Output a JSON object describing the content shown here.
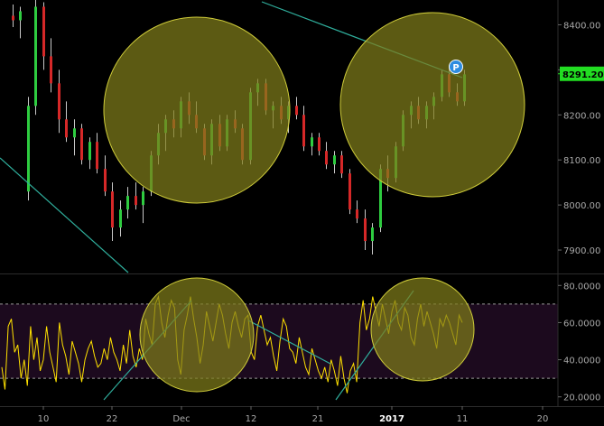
{
  "colors": {
    "background": "#000000",
    "panel_border": "#2c2c2c",
    "candle_up": "#2ecc40",
    "candle_down": "#d62828",
    "rsi_line": "#ffe100",
    "rsi_band_fill": "#1c0a1e",
    "trendline": "#2fae9c",
    "highlight_fill": "#7f7d1a",
    "highlight_stroke": "#cfcc3a",
    "price_tag_bg": "#22dd22",
    "p_marker_bg": "#2e8ce0",
    "axis_text": "#a8a8a8"
  },
  "price_panel": {
    "y_axis_labels": [
      "8400.00",
      "8300.00",
      "8200.00",
      "8100.00",
      "8000.00",
      "7900.00"
    ],
    "y_axis_values": [
      8400,
      8300,
      8200,
      8100,
      8000,
      7900
    ],
    "y_range": [
      7850,
      8455
    ],
    "current_price": "8291.20",
    "marker_label": "P"
  },
  "rsi_panel": {
    "y_axis_labels": [
      "80.0000",
      "60.0000",
      "40.0000",
      "20.0000"
    ],
    "y_axis_values": [
      80,
      60,
      40,
      20
    ],
    "y_range": [
      15,
      85
    ],
    "band": [
      30,
      70
    ]
  },
  "x_axis": {
    "labels": [
      {
        "text": "10",
        "bold": false
      },
      {
        "text": "22",
        "bold": false
      },
      {
        "text": "Dec",
        "bold": false
      },
      {
        "text": "12",
        "bold": false
      },
      {
        "text": "21",
        "bold": false
      },
      {
        "text": "2017",
        "bold": true
      },
      {
        "text": "11",
        "bold": false
      },
      {
        "text": "20",
        "bold": false
      }
    ]
  },
  "chart_data": {
    "type": "candlestick",
    "price_y_range": [
      7850,
      8455
    ],
    "candles": [
      {
        "o": 8420,
        "h": 8445,
        "l": 8395,
        "c": 8410
      },
      {
        "o": 8410,
        "h": 8440,
        "l": 8370,
        "c": 8430
      },
      {
        "o": 8030,
        "h": 8240,
        "l": 8010,
        "c": 8220
      },
      {
        "o": 8220,
        "h": 8455,
        "l": 8200,
        "c": 8440
      },
      {
        "o": 8440,
        "h": 8450,
        "l": 8300,
        "c": 8330
      },
      {
        "o": 8330,
        "h": 8370,
        "l": 8250,
        "c": 8270
      },
      {
        "o": 8270,
        "h": 8300,
        "l": 8160,
        "c": 8190
      },
      {
        "o": 8190,
        "h": 8230,
        "l": 8140,
        "c": 8150
      },
      {
        "o": 8150,
        "h": 8190,
        "l": 8110,
        "c": 8170
      },
      {
        "o": 8170,
        "h": 8180,
        "l": 8090,
        "c": 8100
      },
      {
        "o": 8100,
        "h": 8150,
        "l": 8080,
        "c": 8140
      },
      {
        "o": 8140,
        "h": 8160,
        "l": 8070,
        "c": 8080
      },
      {
        "o": 8080,
        "h": 8110,
        "l": 8020,
        "c": 8030
      },
      {
        "o": 8030,
        "h": 8050,
        "l": 7920,
        "c": 7950
      },
      {
        "o": 7950,
        "h": 8010,
        "l": 7930,
        "c": 7990
      },
      {
        "o": 7990,
        "h": 8040,
        "l": 7970,
        "c": 8020
      },
      {
        "o": 8020,
        "h": 8050,
        "l": 7990,
        "c": 8000
      },
      {
        "o": 8000,
        "h": 8040,
        "l": 7960,
        "c": 8030
      },
      {
        "o": 8030,
        "h": 8120,
        "l": 8020,
        "c": 8110
      },
      {
        "o": 8110,
        "h": 8180,
        "l": 8090,
        "c": 8160
      },
      {
        "o": 8160,
        "h": 8200,
        "l": 8120,
        "c": 8190
      },
      {
        "o": 8190,
        "h": 8210,
        "l": 8150,
        "c": 8170
      },
      {
        "o": 8170,
        "h": 8240,
        "l": 8150,
        "c": 8230
      },
      {
        "o": 8230,
        "h": 8250,
        "l": 8180,
        "c": 8200
      },
      {
        "o": 8200,
        "h": 8230,
        "l": 8160,
        "c": 8170
      },
      {
        "o": 8170,
        "h": 8180,
        "l": 8100,
        "c": 8110
      },
      {
        "o": 8110,
        "h": 8190,
        "l": 8090,
        "c": 8180
      },
      {
        "o": 8180,
        "h": 8200,
        "l": 8120,
        "c": 8130
      },
      {
        "o": 8130,
        "h": 8200,
        "l": 8120,
        "c": 8190
      },
      {
        "o": 8190,
        "h": 8210,
        "l": 8160,
        "c": 8170
      },
      {
        "o": 8170,
        "h": 8180,
        "l": 8090,
        "c": 8100
      },
      {
        "o": 8100,
        "h": 8260,
        "l": 8090,
        "c": 8250
      },
      {
        "o": 8250,
        "h": 8280,
        "l": 8220,
        "c": 8270
      },
      {
        "o": 8270,
        "h": 8280,
        "l": 8200,
        "c": 8210
      },
      {
        "o": 8210,
        "h": 8230,
        "l": 8170,
        "c": 8220
      },
      {
        "o": 8220,
        "h": 8240,
        "l": 8180,
        "c": 8190
      },
      {
        "o": 8190,
        "h": 8230,
        "l": 8160,
        "c": 8220
      },
      {
        "o": 8220,
        "h": 8240,
        "l": 8190,
        "c": 8200
      },
      {
        "o": 8200,
        "h": 8220,
        "l": 8120,
        "c": 8130
      },
      {
        "o": 8130,
        "h": 8160,
        "l": 8110,
        "c": 8150
      },
      {
        "o": 8150,
        "h": 8160,
        "l": 8110,
        "c": 8120
      },
      {
        "o": 8120,
        "h": 8140,
        "l": 8080,
        "c": 8090
      },
      {
        "o": 8090,
        "h": 8120,
        "l": 8070,
        "c": 8110
      },
      {
        "o": 8110,
        "h": 8120,
        "l": 8060,
        "c": 8070
      },
      {
        "o": 8070,
        "h": 8080,
        "l": 7980,
        "c": 7990
      },
      {
        "o": 7990,
        "h": 8010,
        "l": 7960,
        "c": 7970
      },
      {
        "o": 7970,
        "h": 7990,
        "l": 7900,
        "c": 7920
      },
      {
        "o": 7920,
        "h": 7960,
        "l": 7890,
        "c": 7950
      },
      {
        "o": 7950,
        "h": 8090,
        "l": 7940,
        "c": 8080
      },
      {
        "o": 8080,
        "h": 8110,
        "l": 8030,
        "c": 8060
      },
      {
        "o": 8060,
        "h": 8140,
        "l": 8050,
        "c": 8130
      },
      {
        "o": 8130,
        "h": 8210,
        "l": 8120,
        "c": 8200
      },
      {
        "o": 8200,
        "h": 8230,
        "l": 8170,
        "c": 8220
      },
      {
        "o": 8220,
        "h": 8240,
        "l": 8180,
        "c": 8190
      },
      {
        "o": 8190,
        "h": 8230,
        "l": 8170,
        "c": 8220
      },
      {
        "o": 8220,
        "h": 8250,
        "l": 8190,
        "c": 8240
      },
      {
        "o": 8240,
        "h": 8300,
        "l": 8230,
        "c": 8290
      },
      {
        "o": 8290,
        "h": 8310,
        "l": 8240,
        "c": 8250
      },
      {
        "o": 8250,
        "h": 8270,
        "l": 8220,
        "c": 8230
      },
      {
        "o": 8230,
        "h": 8300,
        "l": 8220,
        "c": 8290
      }
    ],
    "rsi_y_range": [
      15,
      85
    ],
    "rsi": [
      36,
      24,
      58,
      62,
      44,
      48,
      30,
      40,
      26,
      58,
      40,
      52,
      34,
      40,
      58,
      44,
      36,
      28,
      60,
      48,
      42,
      32,
      50,
      44,
      38,
      28,
      40,
      46,
      50,
      42,
      36,
      38,
      46,
      40,
      52,
      44,
      40,
      34,
      48,
      38,
      56,
      42,
      36,
      46,
      40,
      62,
      54,
      48,
      70,
      74,
      60,
      52,
      64,
      72,
      68,
      40,
      32,
      56,
      64,
      74,
      62,
      52,
      38,
      48,
      66,
      58,
      50,
      60,
      70,
      64,
      54,
      46,
      60,
      66,
      58,
      52,
      62,
      64,
      44,
      40,
      58,
      64,
      56,
      48,
      52,
      42,
      34,
      50,
      62,
      58,
      46,
      44,
      38,
      52,
      44,
      36,
      32,
      46,
      40,
      34,
      30,
      36,
      28,
      40,
      34,
      26,
      42,
      30,
      22,
      34,
      38,
      28,
      60,
      72,
      56,
      62,
      74,
      66,
      58,
      70,
      62,
      54,
      66,
      72,
      60,
      56,
      68,
      64,
      52,
      48,
      62,
      70,
      58,
      66,
      60,
      54,
      46,
      62,
      58,
      64,
      60,
      54,
      48,
      64,
      60
    ]
  }
}
